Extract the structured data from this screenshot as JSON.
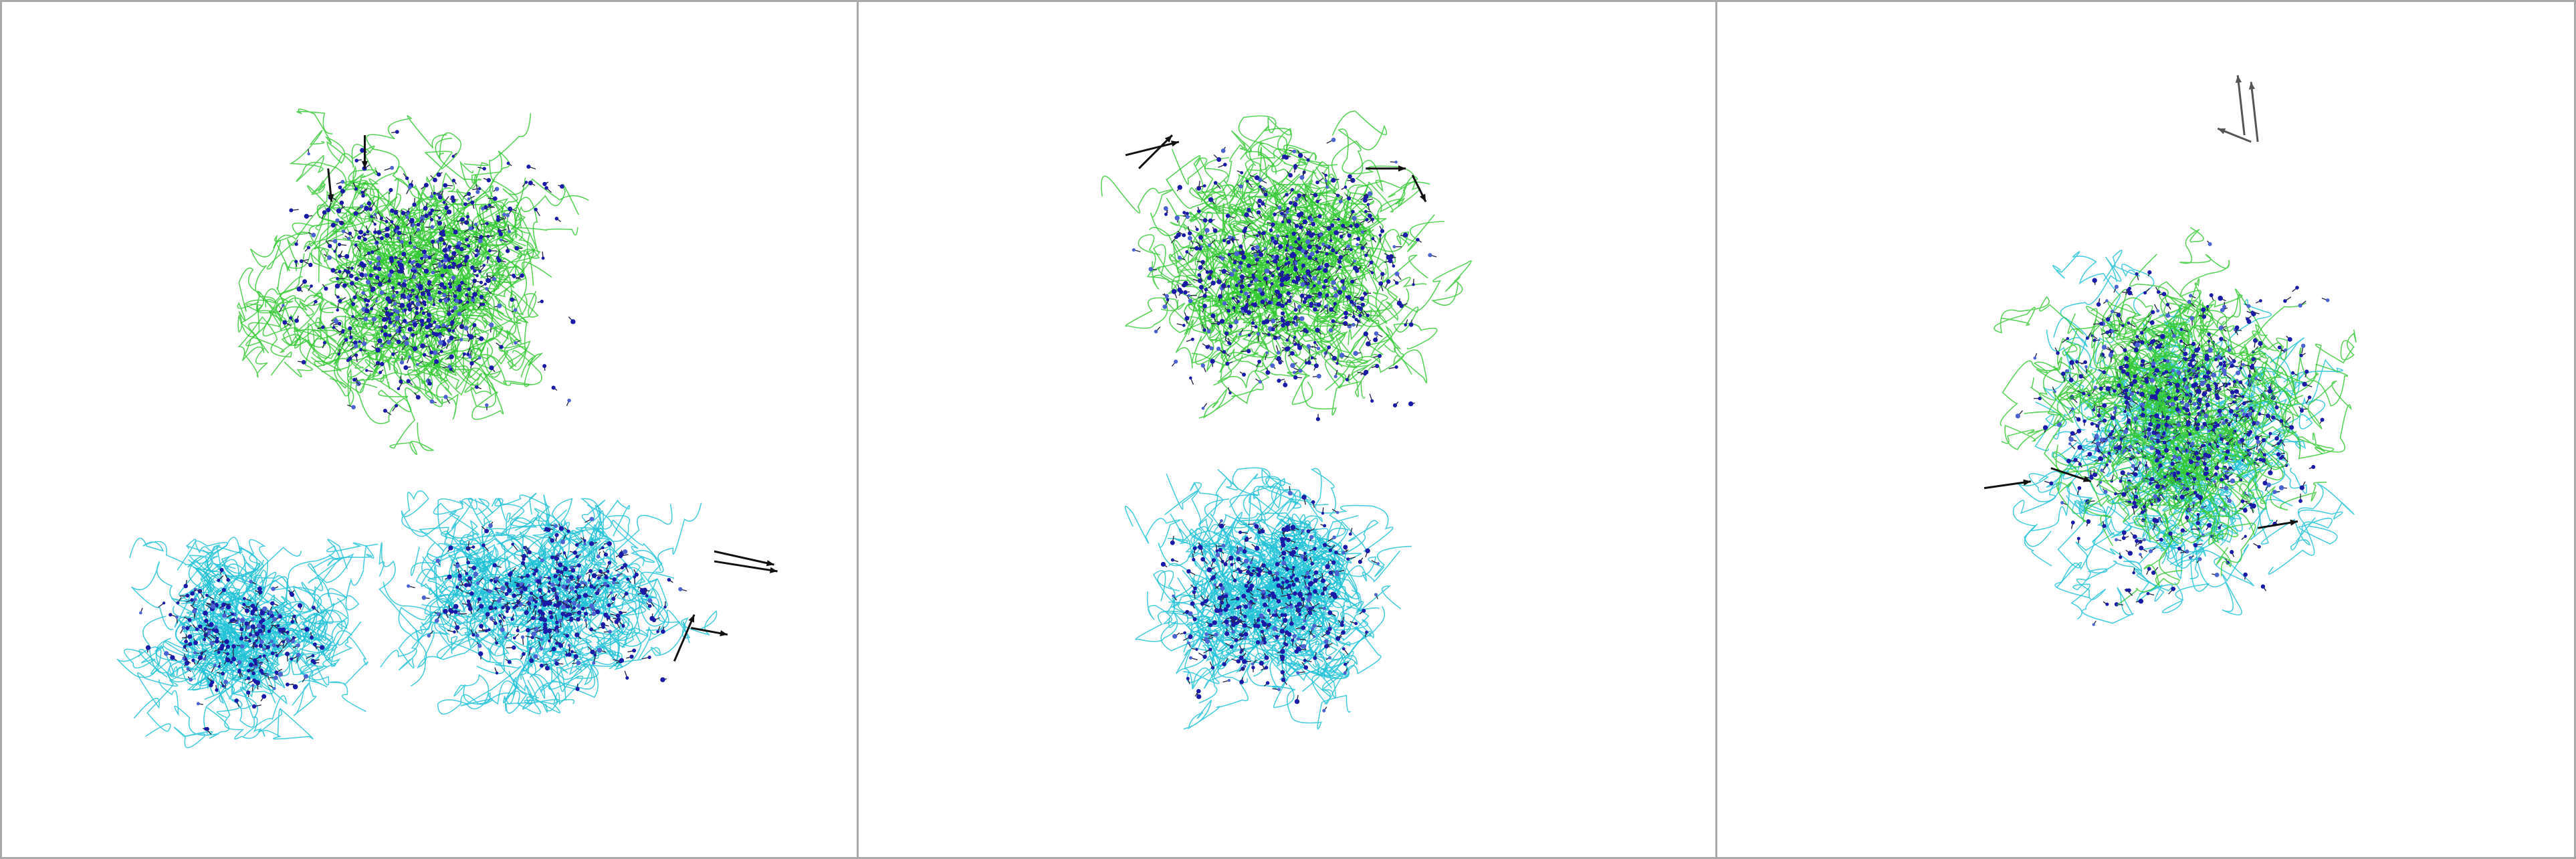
{
  "figure": {
    "panel_count": 3,
    "colors": {
      "backbone_green": "#32c832",
      "backbone_cyan": "#1ec0d6",
      "node_blue": "#1a1aa8",
      "node_light_blue": "#4b63d0",
      "arrow_dark": "#111111",
      "arrow_gray": "#555555",
      "border": "#a9a9a9",
      "background": "#ffffff"
    },
    "panels": [
      {
        "view": "front",
        "domains": [
          "upper-cluster-green",
          "lower-left-cluster-cyan",
          "lower-right-cluster-cyan"
        ]
      },
      {
        "view": "side",
        "domains": [
          "upper-cluster-green",
          "lower-cluster-cyan"
        ]
      },
      {
        "view": "top",
        "domains": [
          "merged-cluster-green-cyan"
        ]
      }
    ]
  }
}
